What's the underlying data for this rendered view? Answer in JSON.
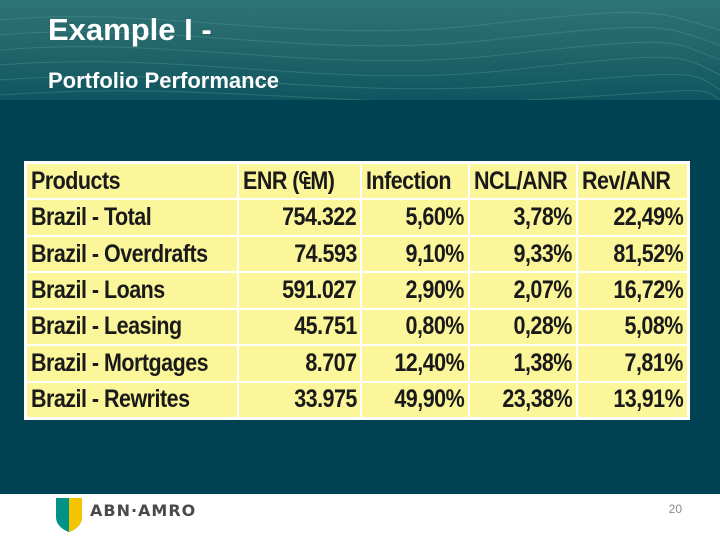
{
  "slide": {
    "title": "Example I -",
    "subtitle": "Portfolio Performance"
  },
  "table": {
    "headers": [
      "Products",
      "ENR (₠M)",
      "Infection",
      "NCL/ANR",
      "Rev/ANR"
    ],
    "rows": [
      [
        "Brazil - Total",
        "754.322",
        "5,60%",
        "3,78%",
        "22,49%"
      ],
      [
        "Brazil - Overdrafts",
        "74.593",
        "9,10%",
        "9,33%",
        "81,52%"
      ],
      [
        "Brazil - Loans",
        "591.027",
        "2,90%",
        "2,07%",
        "16,72%"
      ],
      [
        "Brazil - Leasing",
        "45.751",
        "0,80%",
        "0,28%",
        "5,08%"
      ],
      [
        "Brazil - Mortgages",
        "8.707",
        "12,40%",
        "1,38%",
        "7,81%"
      ],
      [
        "Brazil - Rewrites",
        "33.975",
        "49,90%",
        "23,38%",
        "13,91%"
      ]
    ]
  },
  "footer": {
    "logo_text": "ABN·AMRO",
    "page_number": "20"
  },
  "colors": {
    "background": "#004152",
    "table_cell": "#fbf69a",
    "logo_green": "#009286",
    "logo_yellow": "#f5c400"
  }
}
